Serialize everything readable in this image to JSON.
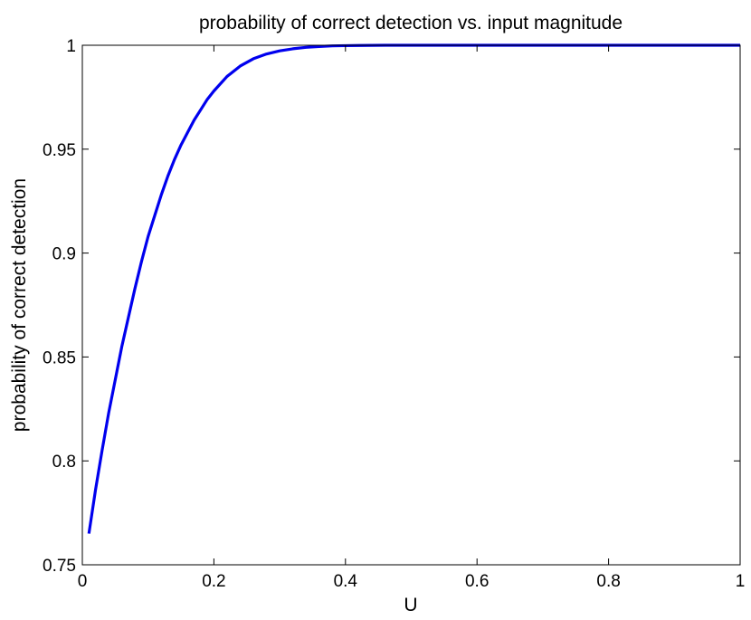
{
  "chart_data": {
    "type": "line",
    "title": "probability of correct detection vs. input magnitude",
    "xlabel": "U",
    "ylabel": "probability of correct detection",
    "xlim": [
      0,
      1
    ],
    "ylim": [
      0.75,
      1
    ],
    "xticks": [
      0,
      0.2,
      0.4,
      0.6,
      0.8,
      1
    ],
    "xtick_labels": [
      "0",
      "0.2",
      "0.4",
      "0.6",
      "0.8",
      "1"
    ],
    "yticks": [
      0.75,
      0.8,
      0.85,
      0.9,
      0.95,
      1
    ],
    "ytick_labels": [
      "0.75",
      "0.8",
      "0.85",
      "0.9",
      "0.95",
      "1"
    ],
    "grid": false,
    "legend": "none",
    "series": [
      {
        "color": "#0000ee",
        "x": [
          0.01,
          0.02,
          0.03,
          0.04,
          0.05,
          0.06,
          0.07,
          0.08,
          0.09,
          0.1,
          0.11,
          0.12,
          0.13,
          0.14,
          0.15,
          0.16,
          0.17,
          0.18,
          0.19,
          0.2,
          0.22,
          0.24,
          0.26,
          0.28,
          0.3,
          0.32,
          0.34,
          0.36,
          0.38,
          0.4,
          0.42,
          0.44,
          0.46,
          0.48,
          0.5,
          0.55,
          0.6,
          0.65,
          0.7,
          0.75,
          0.8,
          0.85,
          0.9,
          0.95,
          1.0
        ],
        "y": [
          0.765,
          0.786,
          0.805,
          0.823,
          0.839,
          0.855,
          0.869,
          0.883,
          0.896,
          0.908,
          0.918,
          0.928,
          0.937,
          0.945,
          0.952,
          0.958,
          0.964,
          0.969,
          0.974,
          0.978,
          0.985,
          0.99,
          0.9935,
          0.9958,
          0.9973,
          0.9983,
          0.999,
          0.9994,
          0.9997,
          0.9998,
          0.9999,
          0.99995,
          1.0,
          1.0,
          1.0,
          1.0,
          1.0,
          1.0,
          1.0,
          1.0,
          1.0,
          1.0,
          1.0,
          1.0,
          1.0
        ]
      }
    ]
  }
}
